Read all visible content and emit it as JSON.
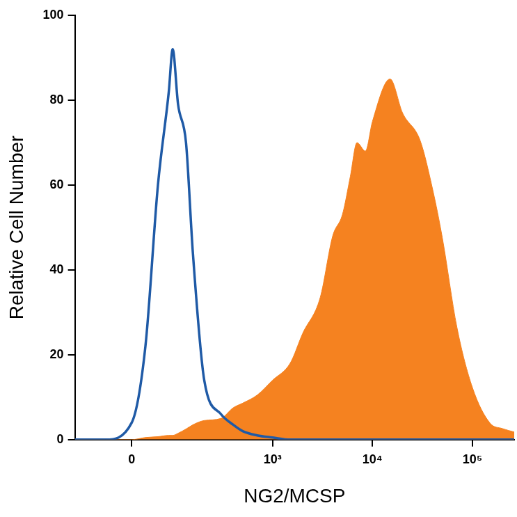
{
  "chart_data": {
    "type": "line",
    "x_label": "NG2/MCSP",
    "y_label": "Relative Cell Number",
    "x": [
      -134,
      -50,
      0,
      25,
      50,
      75,
      85,
      100,
      125,
      150,
      200,
      300,
      400,
      500,
      700,
      1000,
      1500,
      2000,
      3000,
      4000,
      5000,
      6000,
      7000,
      8500,
      10000,
      15000,
      20000,
      30000,
      40000,
      50000,
      70000,
      100000,
      150000,
      200000,
      262144
    ],
    "series": [
      {
        "type": "area",
        "color": "#f58220",
        "values": [
          0,
          0,
          0,
          0.5,
          0.7,
          1,
          1,
          1.5,
          2.5,
          3.5,
          4.5,
          5,
          7.5,
          8.6,
          10.5,
          14,
          18,
          25,
          33.5,
          48,
          53,
          62,
          70,
          68,
          75,
          85,
          77,
          70.5,
          59,
          47.6,
          26.5,
          12.3,
          3.9,
          2.6,
          1.8
        ]
      },
      {
        "type": "line",
        "color": "#1f5aa6",
        "values": [
          0,
          0,
          4,
          22,
          60,
          82,
          92,
          79,
          70,
          44,
          14,
          6,
          3.5,
          2,
          1,
          0.5,
          0,
          0,
          0,
          0,
          0,
          0,
          0,
          0,
          0,
          0,
          0,
          0,
          0,
          0,
          0,
          0,
          0,
          0,
          0
        ]
      }
    ],
    "xlim": [
      -134,
      262144
    ],
    "xticks": [
      0,
      {
        "value": 1000,
        "label": "10³"
      },
      {
        "value": 10000,
        "label": "10⁴"
      },
      {
        "value": 100000,
        "label": "10⁵"
      }
    ],
    "ylim": [
      0,
      100
    ],
    "yticks": [
      0,
      20,
      40,
      60,
      80,
      100
    ],
    "grid": false
  }
}
